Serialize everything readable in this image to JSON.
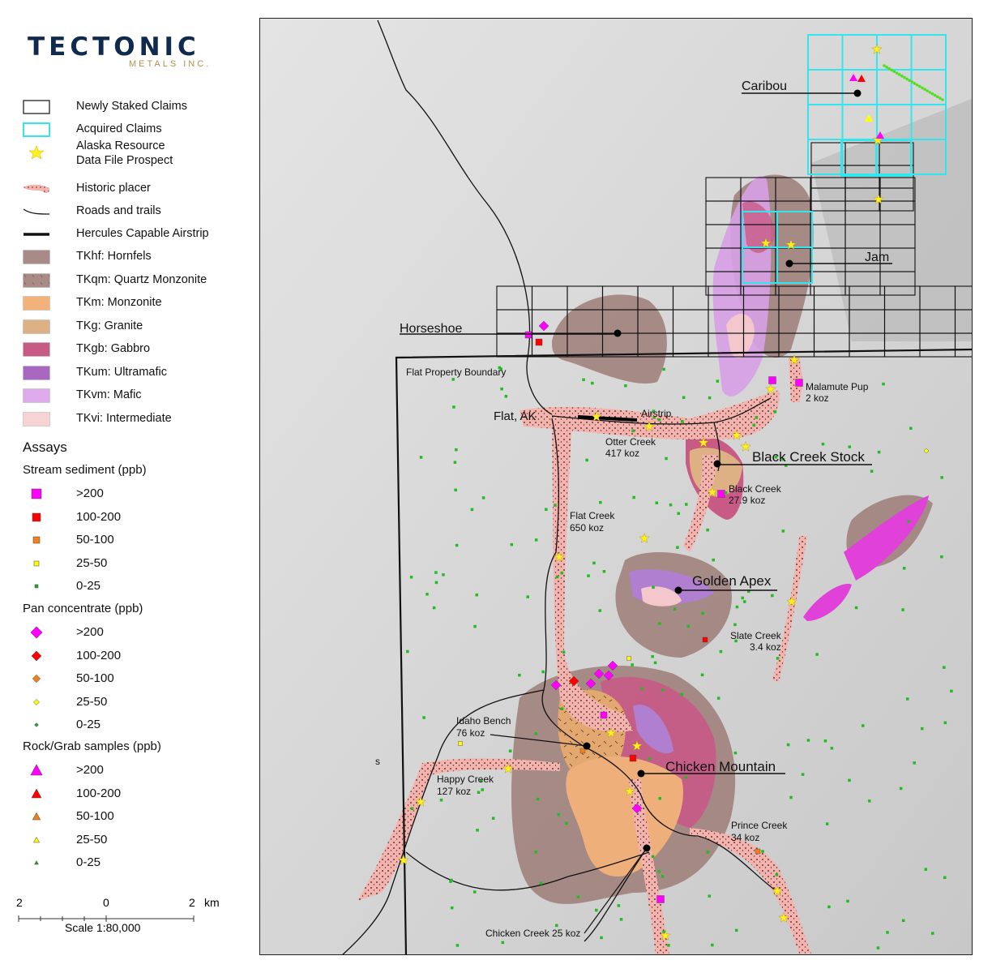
{
  "logo": {
    "main": "TECTONIC",
    "sub": "METALS INC."
  },
  "legend": {
    "items": [
      {
        "label": "Newly Staked Claims",
        "icon": "black-outline-box"
      },
      {
        "label": "Acquired Claims",
        "icon": "cyan-outline-box"
      },
      {
        "label": "Alaska Resource",
        "label2": "Data File Prospect",
        "icon": "yellow-star"
      },
      {
        "label": "Historic placer",
        "icon": "pink-dotted-blob"
      },
      {
        "label": "Roads and trails",
        "icon": "thin-line"
      },
      {
        "label": "Hercules Capable Airstrip",
        "icon": "thick-line"
      },
      {
        "label": "TKhf: Hornfels",
        "color": "#a88b86"
      },
      {
        "label": "TKqm: Quartz Monzonite",
        "color": "#f4b67f"
      },
      {
        "label": "TKm: Monzonite",
        "color": "#f2b27a"
      },
      {
        "label": "TKg: Granite",
        "color": "#deb185"
      },
      {
        "label": "TKgb: Gabbro",
        "color": "#c85a86"
      },
      {
        "label": "TKum: Ultramafic",
        "color": "#a967c0"
      },
      {
        "label": "TKvm: Mafic",
        "color": "#deacec"
      },
      {
        "label": "TKvi: Intermediate",
        "color": "#f7d3d6"
      }
    ]
  },
  "assays": {
    "title": "Assays",
    "groups": [
      {
        "title": "Stream sediment (ppb)",
        "shape": "square",
        "classes": [
          "&gt;200",
          "100-200",
          "50-100",
          "25-50",
          "0-25"
        ]
      },
      {
        "title": "Pan concentrate (ppb)",
        "shape": "diamond",
        "classes": [
          "&gt;200",
          "100-200",
          "50-100",
          "25-50",
          "0-25"
        ]
      },
      {
        "title": "Rock/Grab samples (ppb)",
        "shape": "triangle",
        "classes": [
          "&gt;200",
          "100-200",
          "50-100",
          "25-50",
          "0-25"
        ]
      }
    ],
    "class_colors": [
      "#ff00ff",
      "#ff0000",
      "#f07f1c",
      "#ffff00",
      "#22aa22"
    ]
  },
  "scale": {
    "left": "2",
    "mid": "0",
    "right": "2",
    "unit": "km",
    "text": "Scale 1:80,000"
  },
  "map": {
    "labels": {
      "caribou": "Caribou",
      "jam": "Jam",
      "horseshoe": "Horseshoe",
      "boundary": "Flat Property Boundary",
      "malamute": "Malamute Pup",
      "malamute_koz": "2 koz",
      "flat": "Flat, AK",
      "airstrip": "Airstrip",
      "otter": "Otter Creek",
      "otter_koz": "417 koz",
      "black_stock": "Black Creek Stock",
      "black_creek": "Black Creek",
      "black_creek_koz": "27.9 koz",
      "flat_creek": "Flat Creek",
      "flat_creek_koz": "650 koz",
      "golden_apex": "Golden Apex",
      "slate": "Slate Creek",
      "slate_koz": "3.4 koz",
      "idaho": "Idaho Bench",
      "idaho_koz": "76 koz",
      "chicken_mtn": "Chicken Mountain",
      "happy": "Happy Creek",
      "happy_koz": "127 koz",
      "prince": "Prince Creek",
      "prince_koz": "34 koz",
      "chicken_creek": "Chicken Creek 25 koz",
      "s": "s"
    },
    "colors": {
      "claims_new": "#111111",
      "claims_acquired": "#33e6ee",
      "placer": "#f6b3ad",
      "boundary": "#111111"
    }
  }
}
